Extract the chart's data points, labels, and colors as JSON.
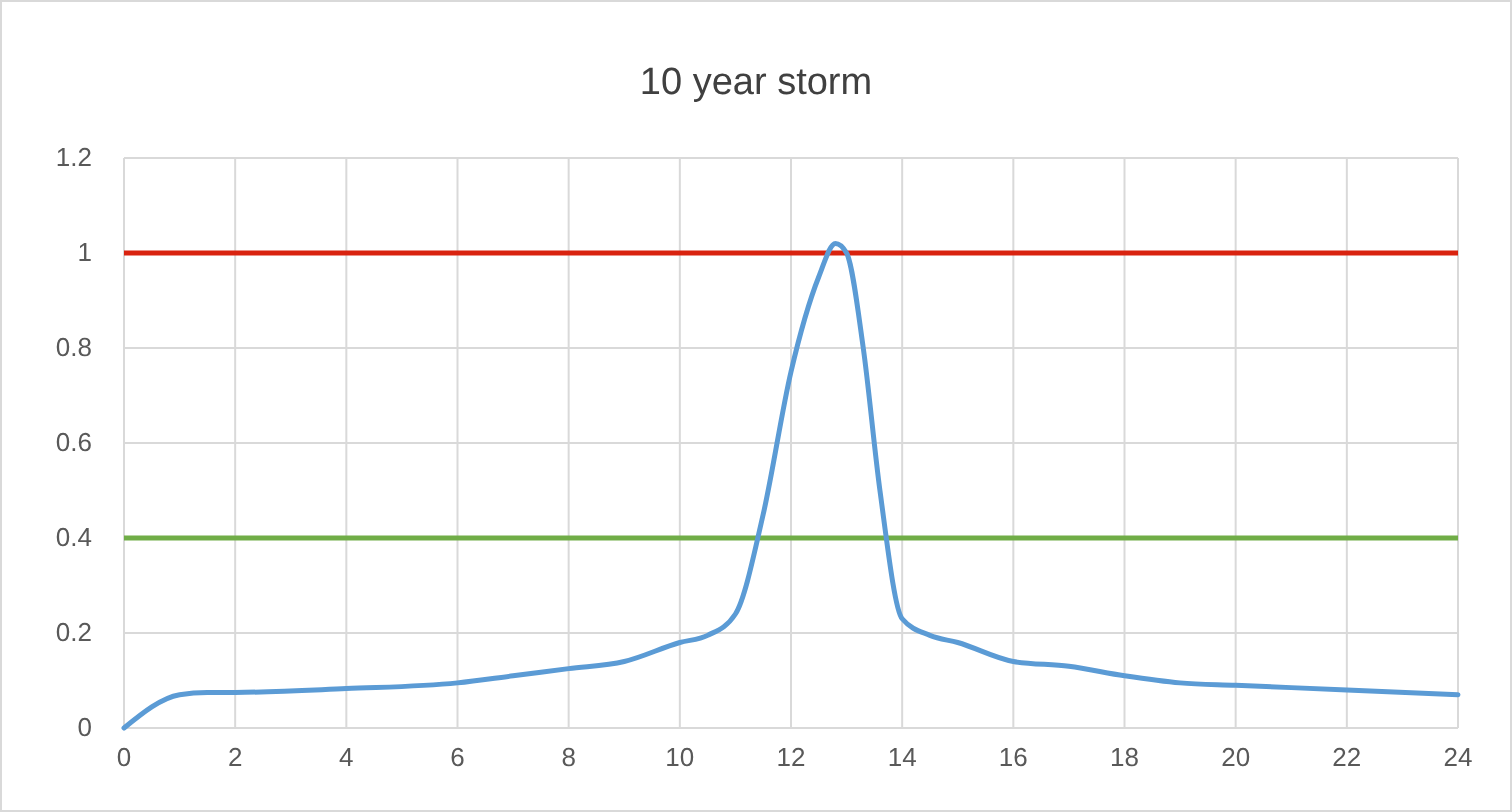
{
  "chart_data": {
    "type": "line",
    "title": "10 year storm",
    "x": [
      0,
      1,
      1.5,
      2,
      4,
      6,
      7,
      8,
      9,
      10,
      10.5,
      11,
      11.5,
      12,
      12.5,
      12.8,
      13,
      13.3,
      13.6,
      14,
      14.5,
      15,
      16,
      17,
      18,
      19,
      20,
      22,
      24
    ],
    "series": [
      {
        "color": "#5b9bd5",
        "values": [
          0,
          0.07,
          0.075,
          0.075,
          0.083,
          0.095,
          0.11,
          0.125,
          0.14,
          0.18,
          0.195,
          0.24,
          0.45,
          0.75,
          0.95,
          1.02,
          1.0,
          0.8,
          0.5,
          0.23,
          0.195,
          0.18,
          0.14,
          0.13,
          0.11,
          0.095,
          0.09,
          0.08,
          0.07
        ]
      }
    ],
    "ref_lines": [
      {
        "axis": "y",
        "value": 1,
        "color": "#d9230f"
      },
      {
        "axis": "y",
        "value": 0.4,
        "color": "#70ad47"
      }
    ],
    "xlim": [
      0,
      24
    ],
    "xticks": [
      0,
      2,
      4,
      6,
      8,
      10,
      12,
      14,
      16,
      18,
      20,
      22,
      24
    ],
    "ylim": [
      0,
      1.2
    ],
    "yticks": [
      0,
      0.2,
      0.4,
      0.6,
      0.8,
      1,
      1.2
    ],
    "grid": true,
    "marker": "none",
    "line_style": "solid"
  }
}
